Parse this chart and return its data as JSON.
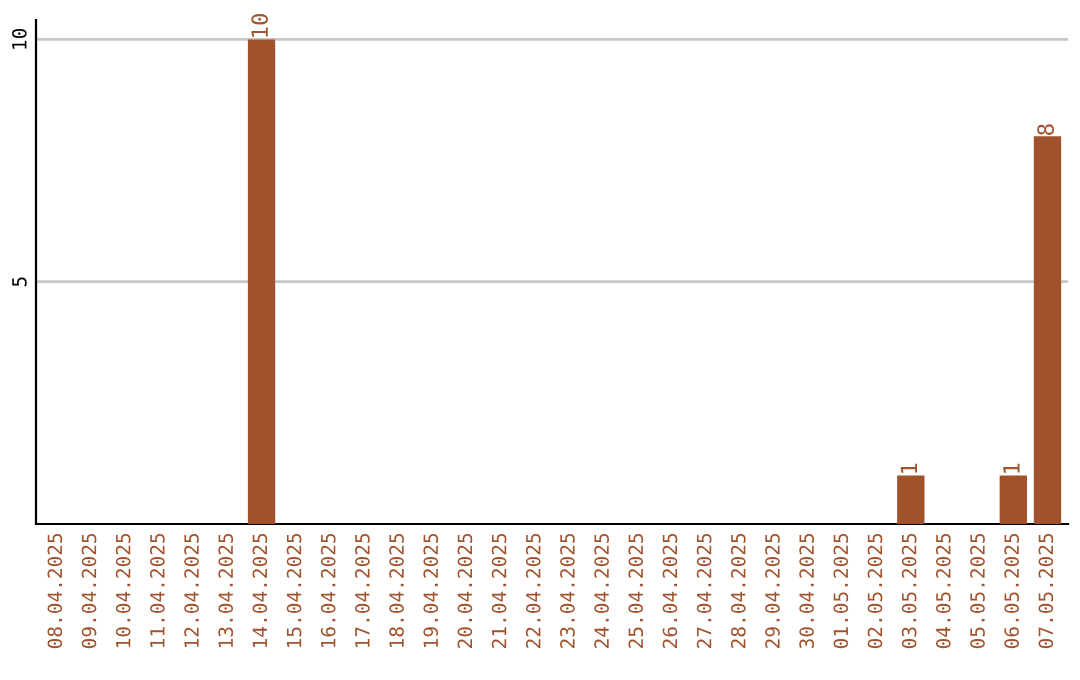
{
  "chart_data": {
    "type": "bar",
    "categories": [
      "08.04.2025",
      "09.04.2025",
      "10.04.2025",
      "11.04.2025",
      "12.04.2025",
      "13.04.2025",
      "14.04.2025",
      "15.04.2025",
      "16.04.2025",
      "17.04.2025",
      "18.04.2025",
      "19.04.2025",
      "20.04.2025",
      "21.04.2025",
      "22.04.2025",
      "23.04.2025",
      "24.04.2025",
      "25.04.2025",
      "26.04.2025",
      "27.04.2025",
      "28.04.2025",
      "29.04.2025",
      "30.04.2025",
      "01.05.2025",
      "02.05.2025",
      "03.05.2025",
      "04.05.2025",
      "05.05.2025",
      "06.05.2025",
      "07.05.2025"
    ],
    "values": [
      0,
      0,
      0,
      0,
      0,
      0,
      10,
      0,
      0,
      0,
      0,
      0,
      0,
      0,
      0,
      0,
      0,
      0,
      0,
      0,
      0,
      0,
      0,
      0,
      0,
      1,
      0,
      0,
      1,
      8
    ],
    "value_labels": [
      null,
      null,
      null,
      null,
      null,
      null,
      "10",
      null,
      null,
      null,
      null,
      null,
      null,
      null,
      null,
      null,
      null,
      null,
      null,
      null,
      null,
      null,
      null,
      null,
      null,
      "1",
      null,
      null,
      "1",
      "8"
    ],
    "color": "#a0522d",
    "ylim": [
      0,
      10.4
    ],
    "yticks": [
      5,
      10
    ],
    "grid": "y"
  }
}
